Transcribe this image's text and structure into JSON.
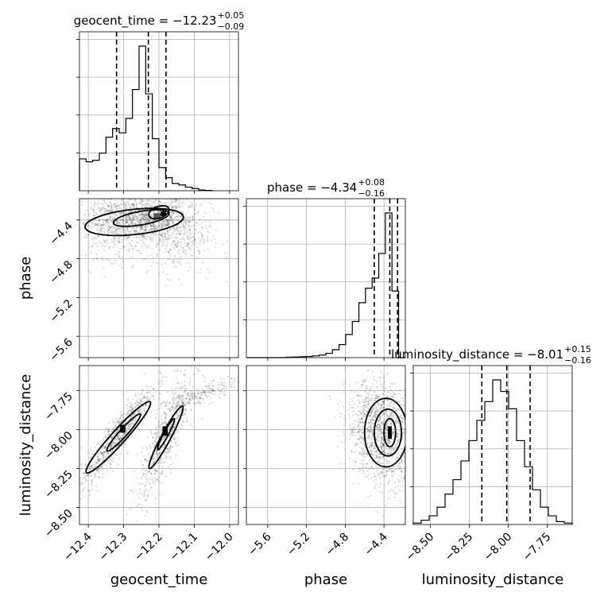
{
  "chart_data": {
    "type": "corner",
    "parameters": [
      "geocent_time",
      "phase",
      "luminosity_distance"
    ],
    "titles": [
      {
        "param": "geocent_time",
        "text": "geocent_time = −12.23",
        "upper": "+0.05",
        "lower": "−0.09"
      },
      {
        "param": "phase",
        "text": "phase = −4.34",
        "upper": "+0.08",
        "lower": "−0.16"
      },
      {
        "param": "luminosity_distance",
        "text": "luminosity_distance = −8.01",
        "upper": "+0.15",
        "lower": "−0.16"
      }
    ],
    "axes": {
      "geocent_time": {
        "range": [
          -12.425,
          -11.975
        ],
        "ticks": [
          -12.4,
          -12.3,
          -12.2,
          -12.1,
          -12.0
        ],
        "tick_labels": [
          "−12.4",
          "−12.3",
          "−12.2",
          "−12.1",
          "−12.0"
        ]
      },
      "phase": {
        "range": [
          -5.82,
          -4.18
        ],
        "ticks": [
          -5.6,
          -5.2,
          -4.8,
          -4.4
        ],
        "tick_labels": [
          "−5.6",
          "−5.2",
          "−4.8",
          "−4.4"
        ]
      },
      "luminosity_distance": {
        "range": [
          -8.61,
          -7.59
        ],
        "ticks": [
          -8.5,
          -8.25,
          -8.0,
          -7.75
        ],
        "tick_labels": [
          "−8.50",
          "−8.25",
          "−8.00",
          "−7.75"
        ]
      }
    },
    "histograms": {
      "geocent_time": {
        "bin_start": -12.425,
        "bin_width": 0.01875,
        "counts": [
          0.22,
          0.2,
          0.21,
          0.26,
          0.37,
          0.43,
          0.4,
          0.5,
          0.7,
          1.0,
          0.67,
          0.36,
          0.16,
          0.09,
          0.05,
          0.04,
          0.025,
          0.015,
          0.005,
          0.002
        ]
      },
      "phase": {
        "bin_start": -5.82,
        "bin_width": 0.0683,
        "counts": [
          0,
          0,
          0,
          0,
          0,
          0,
          0.003,
          0.004,
          0.006,
          0.008,
          0.012,
          0.018,
          0.03,
          0.055,
          0.09,
          0.16,
          0.25,
          0.38,
          0.48,
          0.55,
          0.72,
          1.0,
          0.46,
          0.0
        ]
      },
      "luminosity_distance": {
        "bin_start": -8.61,
        "bin_width": 0.051,
        "counts": [
          0.01,
          0.03,
          0.06,
          0.12,
          0.21,
          0.31,
          0.44,
          0.58,
          0.72,
          0.85,
          1.0,
          0.92,
          0.8,
          0.58,
          0.4,
          0.24,
          0.12,
          0.06,
          0.02,
          0.01
        ]
      }
    },
    "quantiles": {
      "geocent_time": [
        -12.32,
        -12.23,
        -12.18
      ],
      "phase": [
        -4.5,
        -4.34,
        -4.26
      ],
      "luminosity_distance": [
        -8.17,
        -8.01,
        -7.86
      ]
    },
    "grid": true
  }
}
